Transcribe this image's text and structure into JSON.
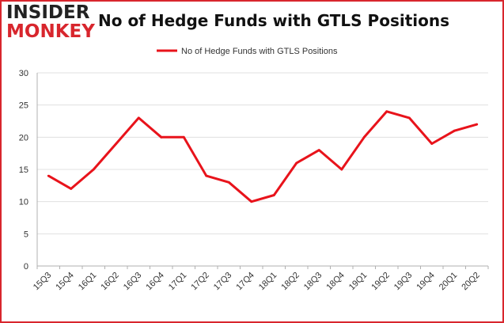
{
  "brand": {
    "line1": "INSIDER",
    "line2": "MONKEY"
  },
  "colors": {
    "series": "#e8131b",
    "border": "#d8262d",
    "grid": "#e0e0e0"
  },
  "chart_data": {
    "type": "line",
    "title": "No of Hedge Funds with GTLS Positions",
    "categories": [
      "15Q3",
      "15Q4",
      "16Q1",
      "16Q2",
      "16Q3",
      "16Q4",
      "17Q1",
      "17Q2",
      "17Q3",
      "17Q4",
      "18Q1",
      "18Q2",
      "18Q3",
      "18Q4",
      "19Q1",
      "19Q2",
      "19Q3",
      "19Q4",
      "20Q1",
      "20Q2"
    ],
    "series": [
      {
        "name": "No of Hedge Funds with GTLS Positions",
        "values": [
          14,
          12,
          15,
          19,
          23,
          20,
          20,
          14,
          13,
          10,
          11,
          16,
          18,
          15,
          20,
          24,
          23,
          19,
          21,
          22
        ]
      }
    ],
    "ylim": [
      0,
      30
    ],
    "yticks": [
      0,
      5,
      10,
      15,
      20,
      25,
      30
    ],
    "grid": true,
    "legend": "top-center"
  }
}
